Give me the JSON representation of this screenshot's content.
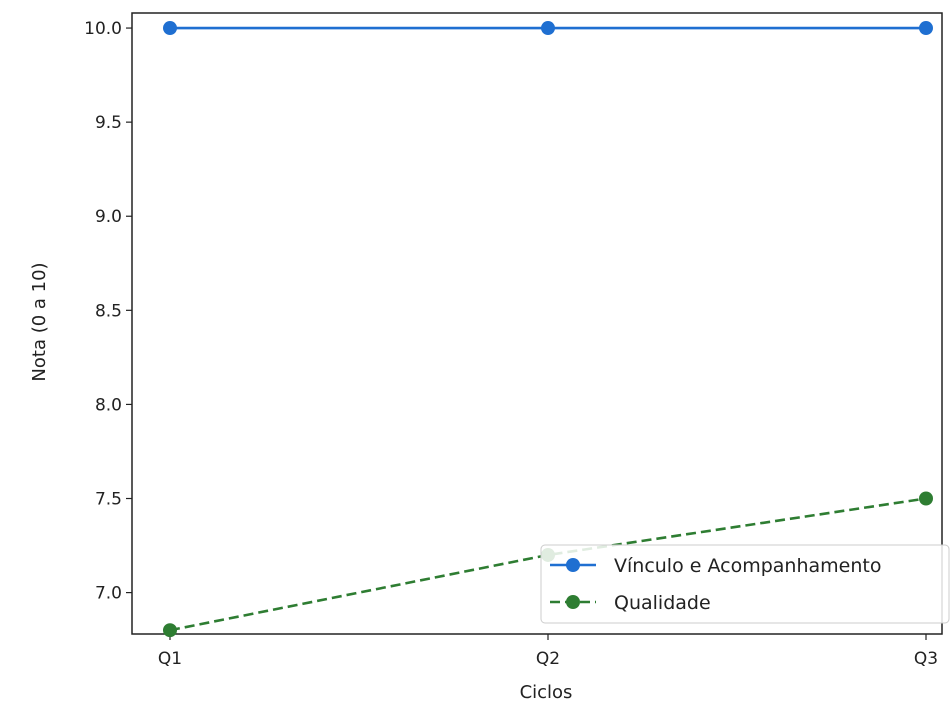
{
  "chart_data": {
    "type": "line",
    "title": "",
    "xlabel": "Ciclos",
    "ylabel": "Nota (0 a 10)",
    "categories": [
      "Q1",
      "Q2",
      "Q3"
    ],
    "ylim": [
      6.78,
      10.08
    ],
    "yticks": [
      "7.0",
      "7.5",
      "8.0",
      "8.5",
      "9.0",
      "9.5",
      "10.0"
    ],
    "grid": false,
    "legend_position": "lower-right",
    "series": [
      {
        "name": "Vínculo e Acompanhamento",
        "values": [
          10.0,
          10.0,
          10.0
        ],
        "color": "#1f6fd1",
        "linestyle": "solid",
        "marker": "circle"
      },
      {
        "name": "Qualidade",
        "values": [
          6.8,
          7.2,
          7.5
        ],
        "color": "#2e7d32",
        "linestyle": "dashed",
        "marker": "circle"
      }
    ]
  }
}
